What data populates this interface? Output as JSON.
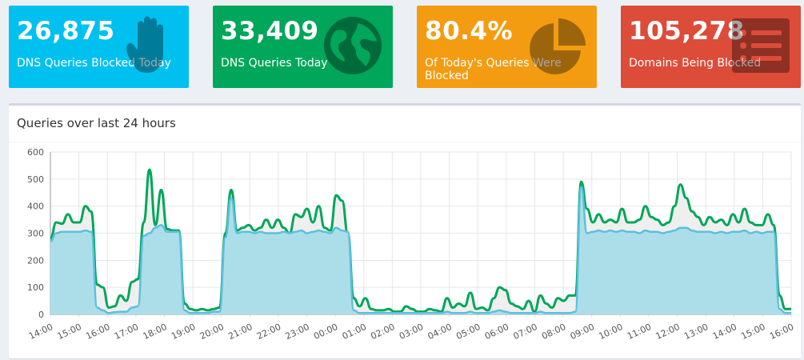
{
  "stats": [
    {
      "value": "26,875",
      "label": "DNS Queries Blocked Today",
      "color": "#00c0ef",
      "icon": "hand-icon"
    },
    {
      "value": "33,409",
      "label": "DNS Queries Today",
      "color": "#00a65a",
      "icon": "globe-icon"
    },
    {
      "value": "80.4%",
      "label": "Of Today's Queries Were Blocked",
      "color": "#f39c12",
      "icon": "pie-chart-icon"
    },
    {
      "value": "105,278",
      "label": "Domains Being Blocked",
      "color": "#dd4b39",
      "icon": "list-icon"
    }
  ],
  "panel": {
    "title": "Queries over last 24 hours"
  },
  "chart_data": {
    "type": "area",
    "y_ticks": [
      "0",
      "100",
      "200",
      "300",
      "400",
      "500",
      "600"
    ],
    "x_ticks": [
      "14:00",
      "15:00",
      "16:00",
      "17:00",
      "18:00",
      "19:00",
      "20:00",
      "21:00",
      "22:00",
      "23:00",
      "00:00",
      "01:00",
      "02:00",
      "03:00",
      "04:00",
      "05:00",
      "06:00",
      "07:00",
      "08:00",
      "09:00",
      "10:00",
      "11:00",
      "12:00",
      "13:00",
      "14:00",
      "15:00",
      "16:00"
    ],
    "ylim": [
      0,
      600
    ],
    "grid": true,
    "series": [
      {
        "color": "#00a65a",
        "fill": "#efefef",
        "values": [
          280,
          340,
          335,
          370,
          340,
          340,
          400,
          380,
          110,
          100,
          25,
          30,
          70,
          50,
          120,
          130,
          340,
          535,
          330,
          460,
          315,
          310,
          310,
          40,
          20,
          15,
          20,
          15,
          20,
          25,
          300,
          460,
          310,
          320,
          330,
          310,
          320,
          350,
          320,
          350,
          320,
          300,
          370,
          360,
          390,
          340,
          400,
          320,
          310,
          440,
          420,
          300,
          60,
          30,
          60,
          20,
          15,
          15,
          20,
          10,
          10,
          30,
          20,
          10,
          10,
          20,
          15,
          10,
          60,
          25,
          40,
          30,
          80,
          20,
          25,
          15,
          60,
          100,
          90,
          40,
          30,
          20,
          50,
          10,
          70,
          40,
          25,
          60,
          50,
          70,
          70,
          490,
          390,
          340,
          370,
          340,
          350,
          340,
          390,
          340,
          340,
          350,
          400,
          360,
          350,
          330,
          340,
          400,
          480,
          430,
          380,
          360,
          330,
          360,
          340,
          350,
          330,
          370,
          340,
          390,
          340,
          330,
          330,
          370,
          330,
          70,
          20,
          20
        ]
      },
      {
        "color": "#5bc0de",
        "fill": "#a8dce9",
        "values": [
          270,
          300,
          305,
          305,
          305,
          305,
          310,
          305,
          25,
          15,
          5,
          8,
          10,
          10,
          25,
          30,
          290,
          300,
          320,
          330,
          305,
          305,
          305,
          15,
          5,
          5,
          5,
          5,
          10,
          10,
          285,
          430,
          300,
          305,
          305,
          300,
          305,
          300,
          300,
          300,
          305,
          300,
          305,
          310,
          300,
          305,
          310,
          305,
          300,
          320,
          310,
          305,
          15,
          5,
          5,
          5,
          5,
          5,
          5,
          5,
          5,
          5,
          5,
          5,
          5,
          5,
          5,
          5,
          10,
          5,
          5,
          5,
          10,
          5,
          5,
          5,
          10,
          15,
          10,
          5,
          5,
          5,
          5,
          5,
          10,
          5,
          5,
          5,
          5,
          5,
          10,
          470,
          300,
          305,
          310,
          305,
          310,
          305,
          310,
          305,
          305,
          300,
          310,
          305,
          305,
          300,
          305,
          310,
          320,
          320,
          310,
          305,
          305,
          305,
          300,
          305,
          300,
          305,
          305,
          310,
          300,
          305,
          300,
          305,
          305,
          20,
          5,
          5
        ]
      }
    ]
  }
}
